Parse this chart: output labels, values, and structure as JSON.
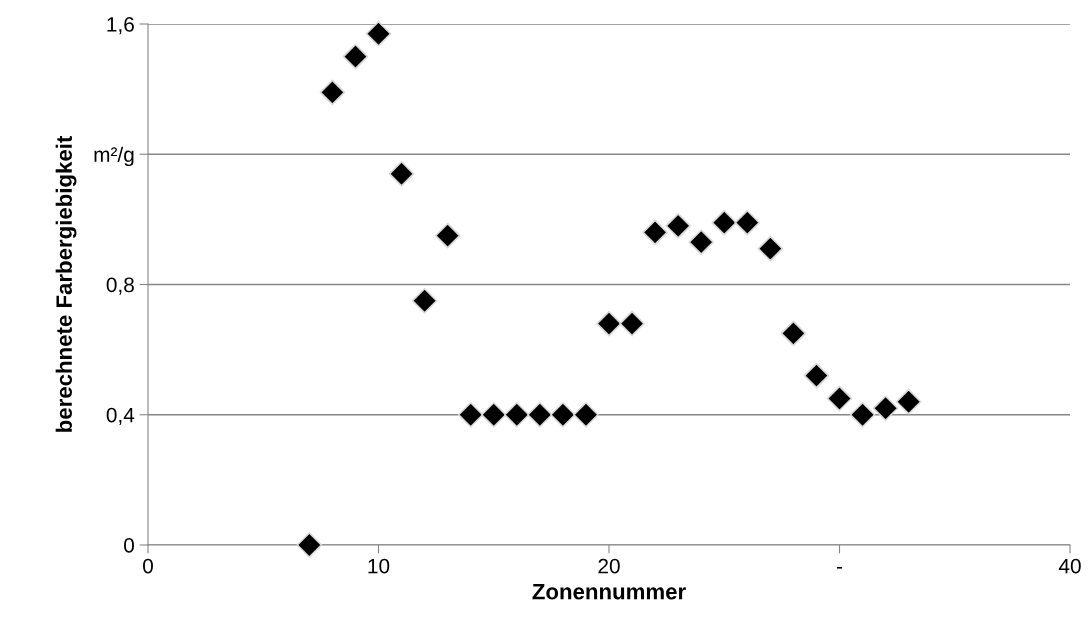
{
  "chart_data": {
    "type": "scatter",
    "xlabel": "Zonennummer",
    "ylabel": "berechnete Farbergiebigkeit",
    "x": [
      7,
      8,
      9,
      10,
      11,
      12,
      13,
      14,
      15,
      16,
      17,
      18,
      19,
      20,
      21,
      22,
      23,
      24,
      25,
      26,
      27,
      28,
      29,
      30,
      31,
      32,
      33
    ],
    "series": [
      {
        "color": "#000000",
        "values": [
          0,
          1.39,
          1.5,
          1.57,
          1.14,
          0.75,
          0.95,
          0.4,
          0.4,
          0.4,
          0.4,
          0.4,
          0.4,
          0.68,
          0.68,
          0.96,
          0.98,
          0.93,
          0.99,
          0.99,
          0.91,
          0.65,
          0.52,
          0.45,
          0.4,
          0.42,
          0.44
        ]
      }
    ],
    "xlim": [
      0,
      40
    ],
    "xticks": [
      0,
      10,
      20,
      {
        "value": 30,
        "label": "-"
      },
      40
    ],
    "ylim": [
      0,
      1.6
    ],
    "yticks": [
      0,
      {
        "value": 0.4,
        "label": "0,4"
      },
      {
        "value": 0.8,
        "label": "0,8"
      },
      {
        "value": 1.2,
        "label": "m²/g"
      },
      {
        "value": 1.6,
        "label": "1,6"
      }
    ],
    "grid": "y",
    "marker": "diamond",
    "legend": false
  }
}
